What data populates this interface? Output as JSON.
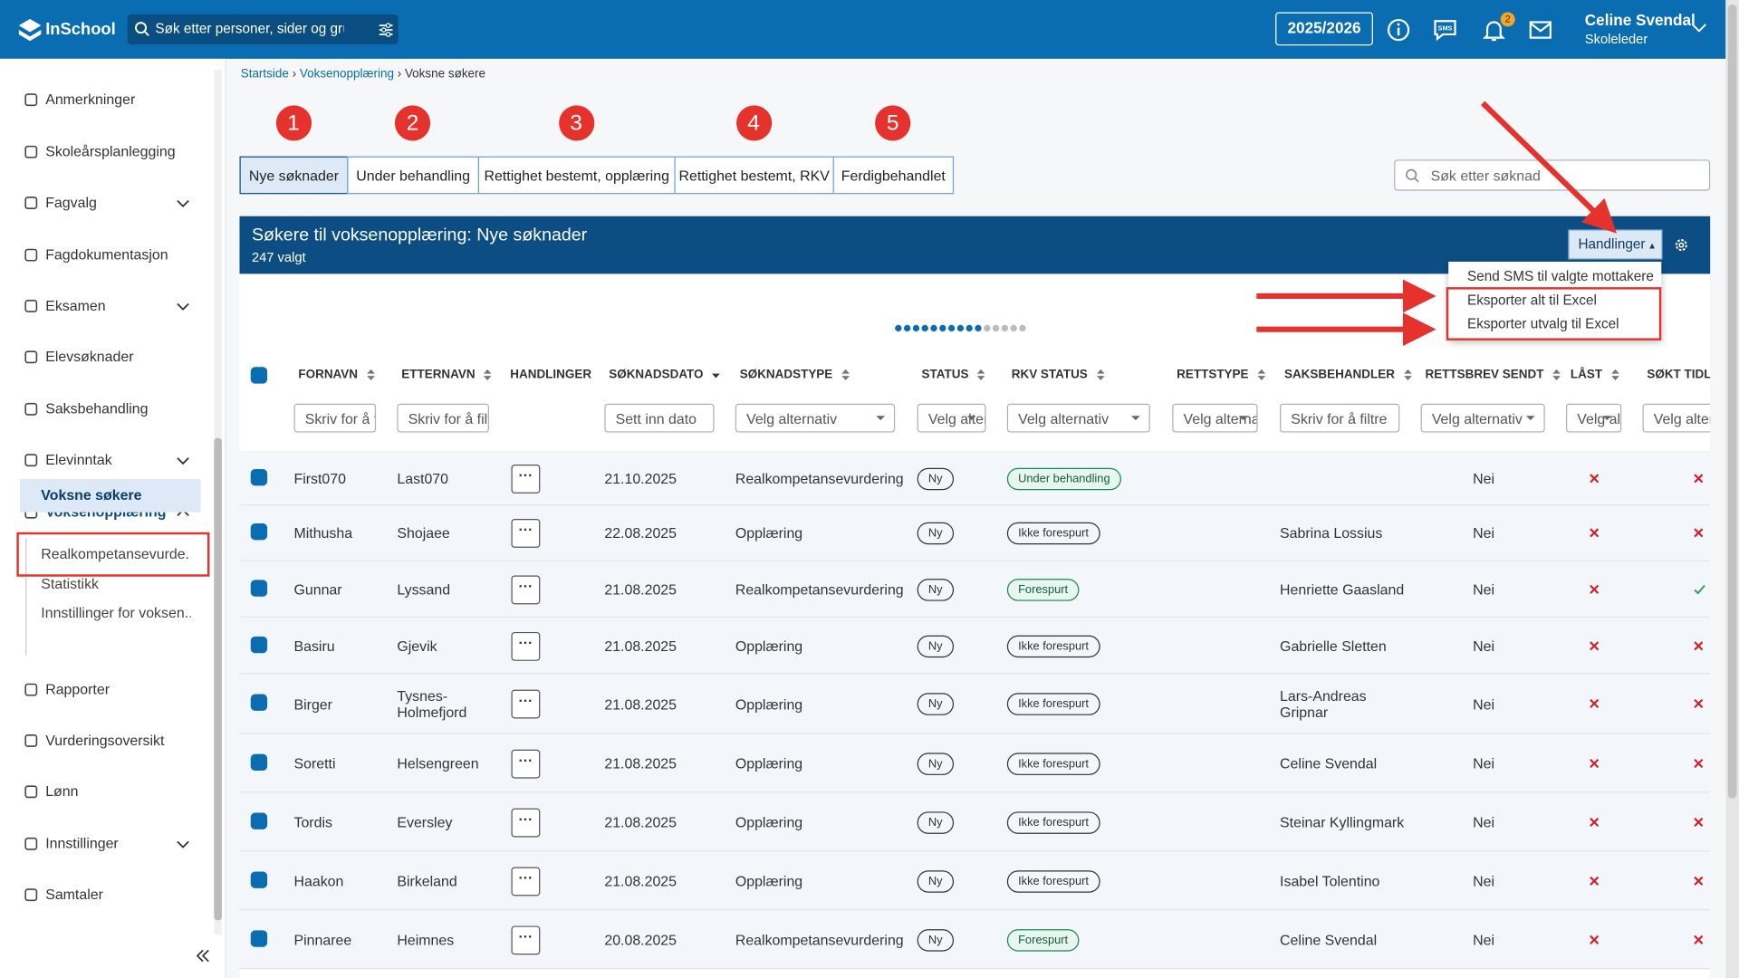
{
  "header": {
    "logo": "InSchool",
    "search_placeholder": "Søk etter personer, sider og gru",
    "year": "2025/2026",
    "notification_count": 2,
    "user_name": "Celine Svendal",
    "user_role": "Skoleleder"
  },
  "sidebar": {
    "items": [
      {
        "label": "Anmerkninger"
      },
      {
        "label": "Skoleårsplanlegging"
      },
      {
        "label": "Fagvalg",
        "expandable": true
      },
      {
        "label": "Fagdokumentasjon"
      },
      {
        "label": "Eksamen",
        "expandable": true
      },
      {
        "label": "Elevsøknader"
      },
      {
        "label": "Saksbehandling"
      },
      {
        "label": "Elevinntak",
        "expandable": true
      },
      {
        "label": "Voksenopplæring",
        "expandable": true,
        "expanded": true,
        "children": [
          "Voksne søkere",
          "Realkompetansevurde...",
          "Statistikk",
          "Innstillinger for voksen..."
        ]
      },
      {
        "label": "Rapporter"
      },
      {
        "label": "Vurderingsoversikt"
      },
      {
        "label": "Lønn"
      },
      {
        "label": "Innstillinger",
        "expandable": true
      },
      {
        "label": "Samtaler"
      }
    ]
  },
  "breadcrumb": [
    "Startside",
    "Voksenopplæring",
    "Voksne søkere"
  ],
  "tabs": [
    {
      "number": 1,
      "label": "Nye søknader",
      "active": true
    },
    {
      "number": 2,
      "label": "Under behandling"
    },
    {
      "number": 3,
      "label": "Rettighet bestemt, opplæring"
    },
    {
      "number": 4,
      "label": "Rettighet bestemt, RKV"
    },
    {
      "number": 5,
      "label": "Ferdigbehandlet"
    }
  ],
  "search_placeholder": "Søk etter søknad",
  "panel": {
    "title": "Søkere til voksenopplæring: Nye søknader",
    "subtitle": "247 valgt",
    "actions_button": "Handlinger",
    "menu": [
      "Send SMS til valgte mottakere",
      "Eksporter alt til Excel",
      "Eksporter utvalg til Excel"
    ]
  },
  "table": {
    "columns": [
      {
        "label": "FORNAVN",
        "filter": "Skriv for å filtre"
      },
      {
        "label": "ETTERNAVN",
        "filter": "Skriv for å filtre"
      },
      {
        "label": "HANDLINGER"
      },
      {
        "label": "SØKNADSDATO",
        "filter": "Sett inn dato",
        "sorted": true
      },
      {
        "label": "SØKNADSTYPE",
        "filter": "Velg alternativ",
        "select": true
      },
      {
        "label": "STATUS",
        "filter": "Velg alternativ",
        "select": true
      },
      {
        "label": "RKV STATUS",
        "filter": "Velg alternativ",
        "select": true
      },
      {
        "label": "RETTSTYPE",
        "filter": "Velg alternativ",
        "select": true
      },
      {
        "label": "SAKSBEHANDLER",
        "filter": "Skriv for å filtre"
      },
      {
        "label": "RETTSBREV SENDT",
        "filter": "Velg alternativ",
        "select": true
      },
      {
        "label": "LÅST",
        "filter": "Velg alternativ",
        "select": true
      },
      {
        "label": "SØKT TIDLIGERE",
        "filter": "Velg alternativ",
        "select": true
      }
    ],
    "rows": [
      {
        "first": "First070",
        "last": "Last070",
        "date": "21.10.2025",
        "type": "Realkompetansevurdering",
        "status": "Ny",
        "rkv": "Under behandling",
        "rkv_green": true,
        "handler": null,
        "letter": "Nei",
        "locked": false,
        "earlier": false
      },
      {
        "first": "Mithusha",
        "last": "Shojaee",
        "date": "22.08.2025",
        "type": "Opplæring",
        "status": "Ny",
        "rkv": "Ikke forespurt",
        "rkv_green": false,
        "handler": "Sabrina Lossius",
        "letter": "Nei",
        "locked": false,
        "earlier": false
      },
      {
        "first": "Gunnar",
        "last": "Lyssand",
        "date": "21.08.2025",
        "type": "Realkompetansevurdering",
        "status": "Ny",
        "rkv": "Forespurt",
        "rkv_green": true,
        "handler": "Henriette Gaasland",
        "letter": "Nei",
        "locked": false,
        "earlier": true
      },
      {
        "first": "Basiru",
        "last": "Gjevik",
        "date": "21.08.2025",
        "type": "Opplæring",
        "status": "Ny",
        "rkv": "Ikke forespurt",
        "rkv_green": false,
        "handler": "Gabrielle Sletten",
        "letter": "Nei",
        "locked": false,
        "earlier": false
      },
      {
        "first": "Birger",
        "last": "Tysnes-Holmefjord",
        "date": "21.08.2025",
        "type": "Opplæring",
        "status": "Ny",
        "rkv": "Ikke forespurt",
        "rkv_green": false,
        "handler": "Lars-Andreas Gripnar",
        "letter": "Nei",
        "locked": false,
        "earlier": false
      },
      {
        "first": "Soretti",
        "last": "Helsengreen",
        "date": "21.08.2025",
        "type": "Opplæring",
        "status": "Ny",
        "rkv": "Ikke forespurt",
        "rkv_green": false,
        "handler": "Celine Svendal",
        "letter": "Nei",
        "locked": false,
        "earlier": false
      },
      {
        "first": "Tordis",
        "last": "Eversley",
        "date": "21.08.2025",
        "type": "Opplæring",
        "status": "Ny",
        "rkv": "Ikke forespurt",
        "rkv_green": false,
        "handler": "Steinar Kyllingmark",
        "letter": "Nei",
        "locked": false,
        "earlier": false
      },
      {
        "first": "Haakon",
        "last": "Birkeland",
        "date": "21.08.2025",
        "type": "Opplæring",
        "status": "Ny",
        "rkv": "Ikke forespurt",
        "rkv_green": false,
        "handler": "Isabel Tolentino",
        "letter": "Nei",
        "locked": false,
        "earlier": false
      },
      {
        "first": "Pinnaree",
        "last": "Heimnes",
        "date": "20.08.2025",
        "type": "Realkompetansevurdering",
        "status": "Ny",
        "rkv": "Forespurt",
        "rkv_green": true,
        "handler": "Celine Svendal",
        "letter": "Nei",
        "locked": false,
        "earlier": false
      }
    ]
  }
}
